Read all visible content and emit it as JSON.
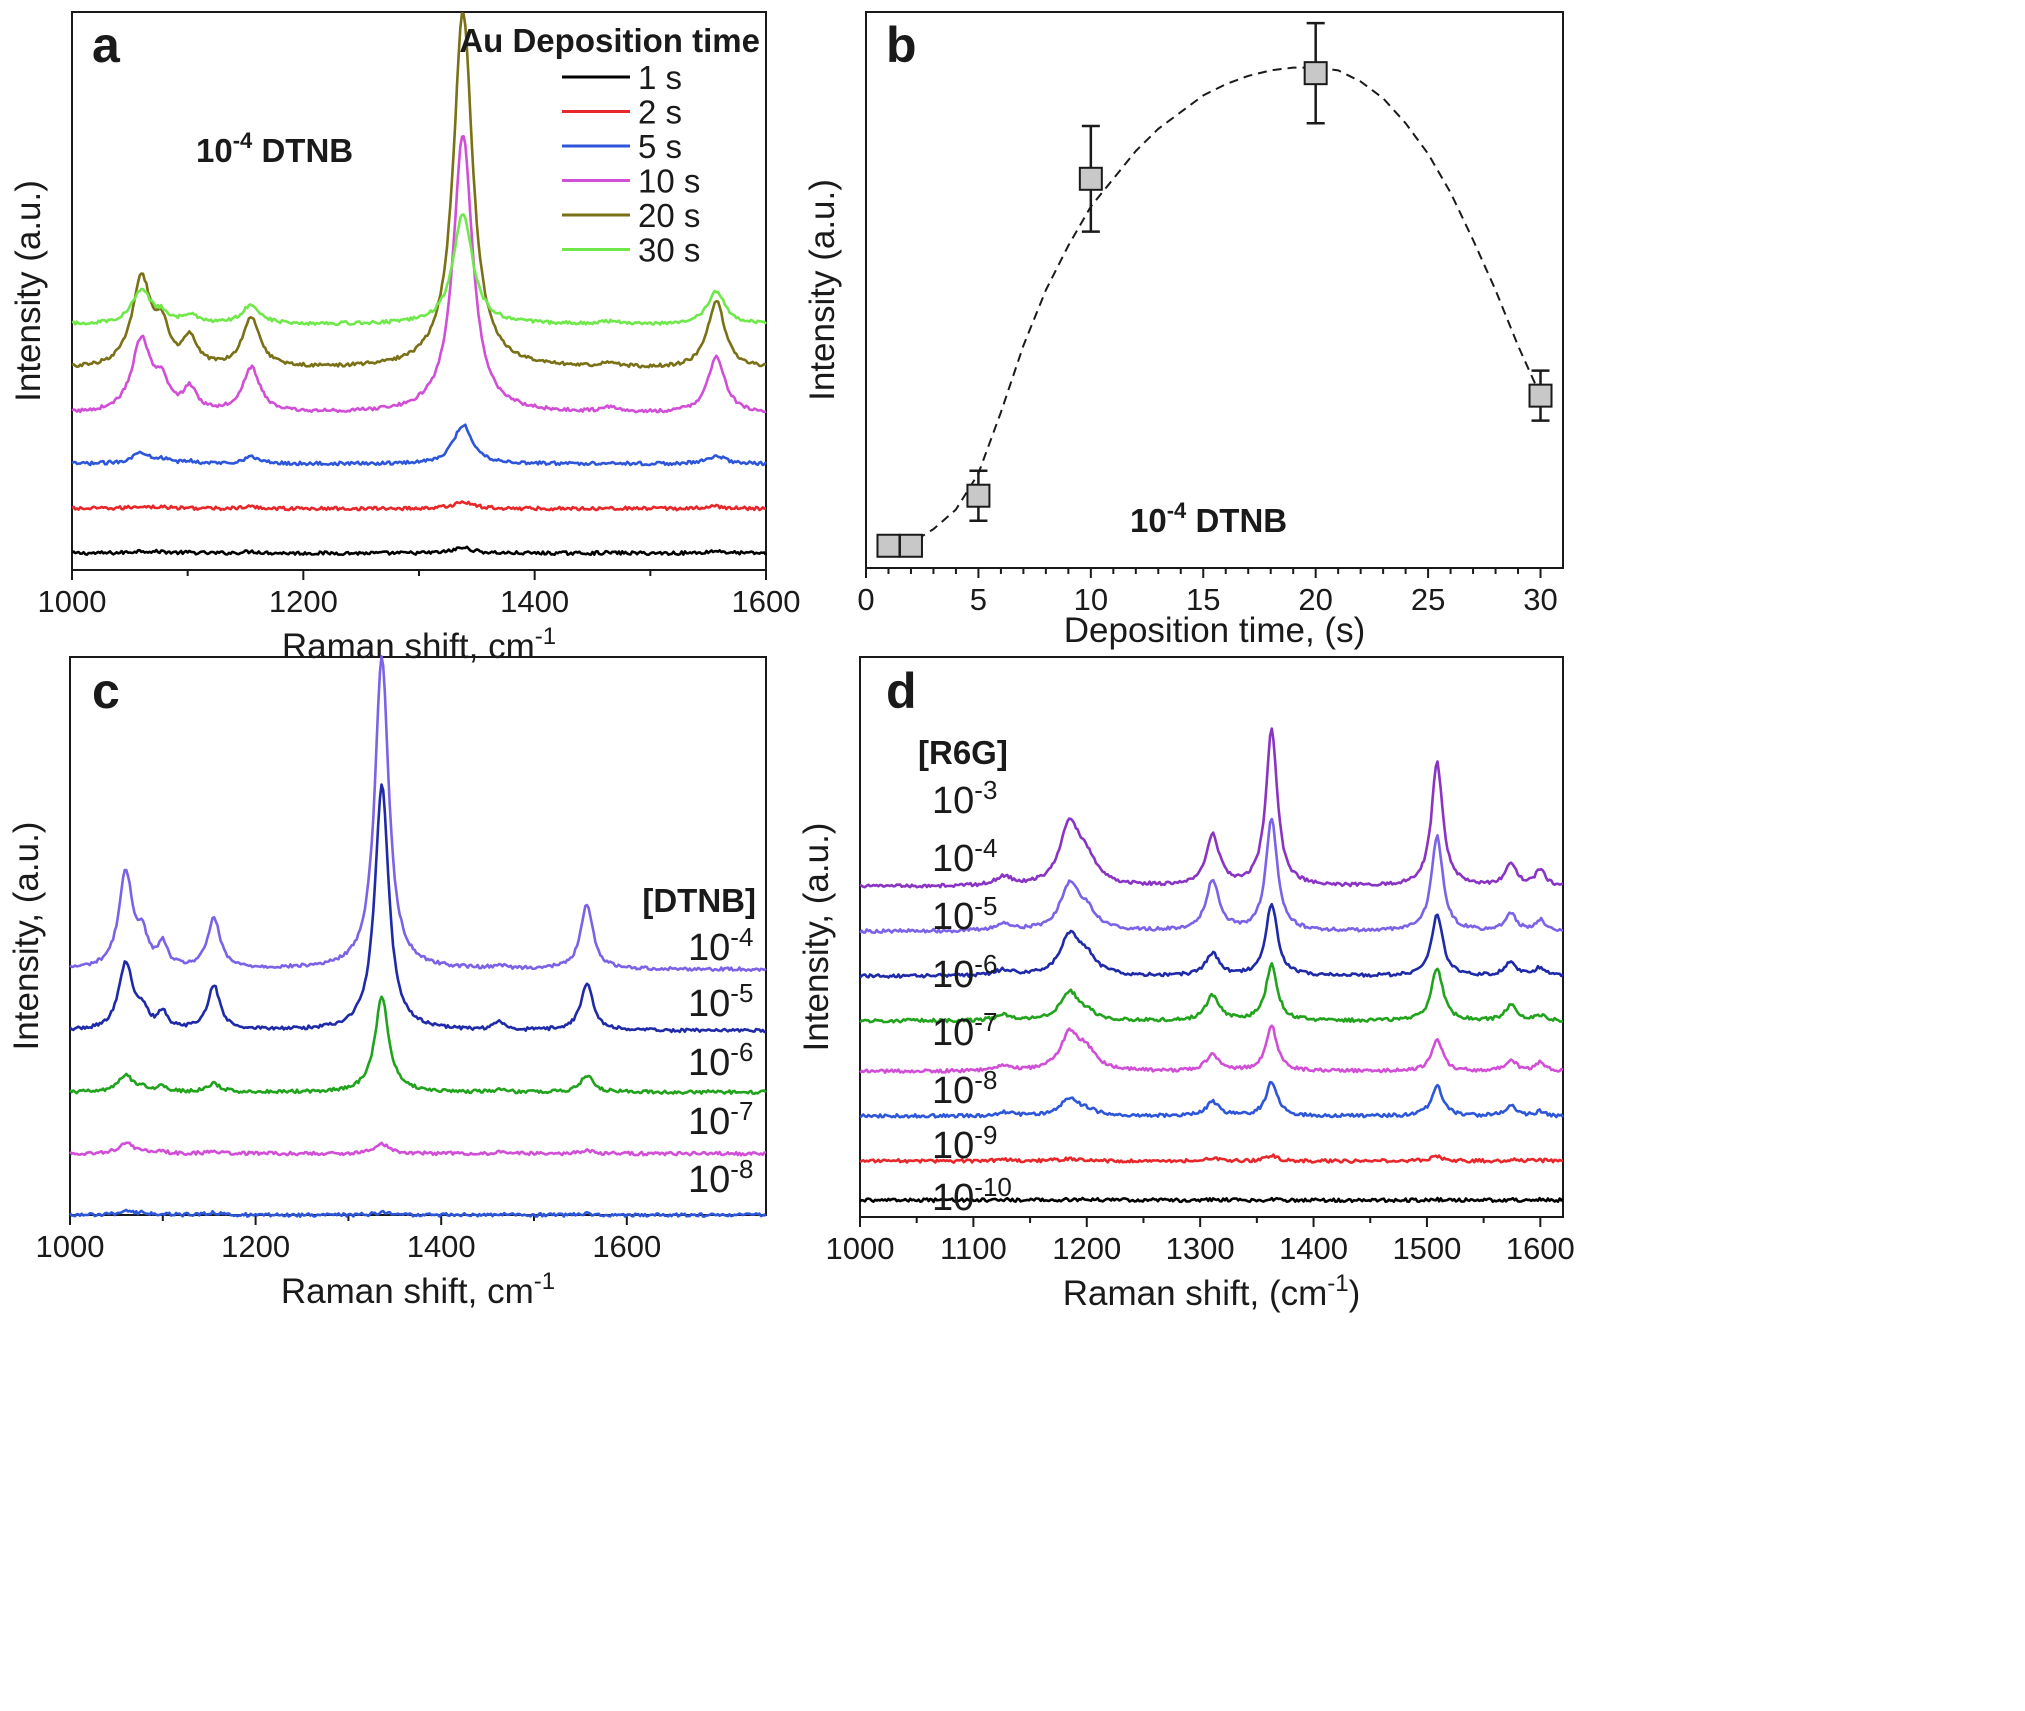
{
  "chart_data": [
    {
      "panel": "a",
      "type": "line",
      "xlabel": "Raman shift, cm",
      "xlabel_sup": "-1",
      "ylabel": "Intensity (a.u.)",
      "xlim": [
        1000,
        1600
      ],
      "xticks": [
        "1000",
        "1200",
        "1400",
        "1600"
      ],
      "annotation": {
        "base": "10",
        "sup": "-4",
        "rest": " DTNB"
      },
      "legend_title": "Au Deposition time",
      "legend_position": "top-right",
      "peaks_cm1": [
        1060,
        1078,
        1102,
        1155,
        1338,
        1465,
        1557
      ],
      "series": [
        {
          "name": "1 s",
          "color": "#000000",
          "offset": 0.03,
          "amplitudes": [
            0.004,
            0.002,
            0.001,
            0.003,
            0.01,
            0.001,
            0.004
          ]
        },
        {
          "name": "2 s",
          "color": "#e8272a",
          "offset": 0.11,
          "amplitudes": [
            0.004,
            0.002,
            0.001,
            0.003,
            0.012,
            0.001,
            0.004
          ]
        },
        {
          "name": "5 s",
          "color": "#2d56d8",
          "offset": 0.19,
          "amplitudes": [
            0.02,
            0.006,
            0.004,
            0.012,
            0.07,
            0.002,
            0.015
          ]
        },
        {
          "name": "10 s",
          "color": "#d14fd6",
          "offset": 0.28,
          "amplitudes": [
            0.13,
            0.045,
            0.04,
            0.08,
            0.5,
            0.008,
            0.1
          ]
        },
        {
          "name": "20 s",
          "color": "#7a7016",
          "offset": 0.36,
          "amplitudes": [
            0.16,
            0.06,
            0.05,
            0.09,
            0.64,
            0.008,
            0.12
          ]
        },
        {
          "name": "30 s",
          "color": "#6fe84a",
          "offset": 0.44,
          "amplitudes": [
            0.06,
            0.015,
            0.015,
            0.035,
            0.2,
            0.004,
            0.06
          ]
        }
      ]
    },
    {
      "panel": "b",
      "type": "scatter",
      "xlabel": "Deposition time, (s)",
      "ylabel": "Intensity (a.u.)",
      "xlim": [
        0,
        31
      ],
      "ylim": [
        0,
        1
      ],
      "xticks": [
        "0",
        "5",
        "10",
        "15",
        "20",
        "25",
        "30"
      ],
      "annotation": {
        "base": "10",
        "sup": "-4",
        "rest": " DTNB"
      },
      "points": [
        {
          "x": 1,
          "y": 0.04,
          "err": 0.015
        },
        {
          "x": 2,
          "y": 0.04,
          "err": 0.015
        },
        {
          "x": 5,
          "y": 0.13,
          "err": 0.045
        },
        {
          "x": 10,
          "y": 0.7,
          "err": 0.095
        },
        {
          "x": 20,
          "y": 0.89,
          "err": 0.09
        },
        {
          "x": 30,
          "y": 0.31,
          "err": 0.045
        }
      ],
      "fit_curve": {
        "style": "dashed",
        "x": [
          1,
          2,
          3,
          4,
          5,
          6,
          7,
          8,
          9,
          10,
          11,
          12,
          13,
          14,
          15,
          16,
          17,
          18,
          19,
          20,
          21,
          22,
          23,
          24,
          25,
          26,
          27,
          28,
          29,
          30
        ],
        "y": [
          0.04,
          0.045,
          0.07,
          0.105,
          0.17,
          0.28,
          0.4,
          0.5,
          0.58,
          0.65,
          0.7,
          0.75,
          0.79,
          0.82,
          0.85,
          0.87,
          0.885,
          0.895,
          0.9,
          0.9,
          0.895,
          0.875,
          0.845,
          0.8,
          0.745,
          0.675,
          0.59,
          0.5,
          0.4,
          0.31
        ]
      }
    },
    {
      "panel": "c",
      "type": "line",
      "xlabel": "Raman shift, cm",
      "xlabel_sup": "-1",
      "ylabel": "Intensity, (a.u.)",
      "xlim": [
        1000,
        1750
      ],
      "xticks": [
        "1000",
        "1200",
        "1400",
        "1600"
      ],
      "concentration_header": "[DTNB]",
      "peaks_cm1": [
        1060,
        1078,
        1100,
        1155,
        1336,
        1462,
        1557
      ],
      "series": [
        {
          "name": "10",
          "sup": "-4",
          "color": "#7c62e6",
          "offset": 0.44,
          "amplitudes": [
            0.17,
            0.05,
            0.04,
            0.09,
            0.56,
            0.006,
            0.115
          ]
        },
        {
          "name": "10",
          "sup": "-5",
          "color": "#1f2aa8",
          "offset": 0.33,
          "amplitudes": [
            0.12,
            0.03,
            0.03,
            0.08,
            0.44,
            0.015,
            0.085
          ]
        },
        {
          "name": "10",
          "sup": "-6",
          "color": "#22a31d",
          "offset": 0.22,
          "amplitudes": [
            0.03,
            0.008,
            0.01,
            0.015,
            0.17,
            0.004,
            0.03
          ]
        },
        {
          "name": "10",
          "sup": "-7",
          "color": "#d14fd6",
          "offset": 0.11,
          "amplitudes": [
            0.02,
            0.004,
            0.003,
            0.004,
            0.018,
            0.002,
            0.005
          ]
        },
        {
          "name": "10",
          "sup": "-8",
          "color": "#2d56d8",
          "offset": 0.0,
          "amplitudes": [
            0.006,
            0.003,
            0.003,
            0.004,
            0.005,
            0.002,
            0.003
          ]
        }
      ]
    },
    {
      "panel": "d",
      "type": "line",
      "xlabel": "Raman shift, (cm",
      "xlabel_sup": "-1",
      "xlabel_tail": ")",
      "ylabel": "Intensity, (a.u.)",
      "xlim": [
        1000,
        1620
      ],
      "xticks": [
        "1000",
        "1100",
        "1200",
        "1300",
        "1400",
        "1500",
        "1600"
      ],
      "concentration_header": "[R6G]",
      "peaks_cm1": [
        1127,
        1185,
        1200,
        1311,
        1363,
        1509,
        1574,
        1600
      ],
      "series": [
        {
          "name": "10",
          "sup": "-3",
          "color": "#8a34c4",
          "offset": 0.59,
          "amplitudes": [
            0.015,
            0.11,
            0.04,
            0.09,
            0.28,
            0.22,
            0.04,
            0.03
          ]
        },
        {
          "name": "10",
          "sup": "-4",
          "color": "#7c62e6",
          "offset": 0.51,
          "amplitudes": [
            0.012,
            0.08,
            0.03,
            0.09,
            0.2,
            0.17,
            0.03,
            0.02
          ]
        },
        {
          "name": "10",
          "sup": "-5",
          "color": "#1f2aa8",
          "offset": 0.43,
          "amplitudes": [
            0.01,
            0.07,
            0.03,
            0.04,
            0.13,
            0.11,
            0.025,
            0.015
          ]
        },
        {
          "name": "10",
          "sup": "-6",
          "color": "#22a31d",
          "offset": 0.35,
          "amplitudes": [
            0.01,
            0.05,
            0.01,
            0.045,
            0.1,
            0.095,
            0.028,
            0.01
          ]
        },
        {
          "name": "10",
          "sup": "-7",
          "color": "#d14fd6",
          "offset": 0.26,
          "amplitudes": [
            0.008,
            0.065,
            0.03,
            0.03,
            0.08,
            0.055,
            0.02,
            0.015
          ]
        },
        {
          "name": "10",
          "sup": "-8",
          "color": "#2d56d8",
          "offset": 0.18,
          "amplitudes": [
            0.006,
            0.03,
            0.008,
            0.025,
            0.06,
            0.055,
            0.018,
            0.008
          ]
        },
        {
          "name": "10",
          "sup": "-9",
          "color": "#e8272a",
          "offset": 0.1,
          "amplitudes": [
            0.002,
            0.004,
            0.001,
            0.004,
            0.01,
            0.008,
            0.002,
            0.001
          ]
        },
        {
          "name": "10",
          "sup": "-10",
          "color": "#000000",
          "offset": 0.03,
          "amplitudes": [
            0.001,
            0.001,
            0.001,
            0.001,
            0.001,
            0.001,
            0.001,
            0.001
          ]
        }
      ]
    }
  ]
}
